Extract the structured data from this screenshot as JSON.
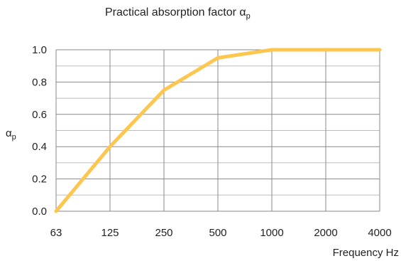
{
  "chart_data": {
    "type": "line",
    "title": "Practical absorption factor α",
    "title_subscript": "p",
    "xlabel": "Frequency Hz",
    "ylabel": "α",
    "ylabel_subscript": "p",
    "categories": [
      "63",
      "125",
      "250",
      "500",
      "1000",
      "2000",
      "4000"
    ],
    "yticks": [
      "0.0",
      "0.2",
      "0.4",
      "0.6",
      "0.8",
      "1.0"
    ],
    "ylim": [
      0,
      1.0
    ],
    "grid": true,
    "series": [
      {
        "values": [
          0.0,
          0.4,
          0.75,
          0.95,
          1.0,
          1.0,
          1.0
        ],
        "color": "#fcc64f"
      }
    ]
  }
}
